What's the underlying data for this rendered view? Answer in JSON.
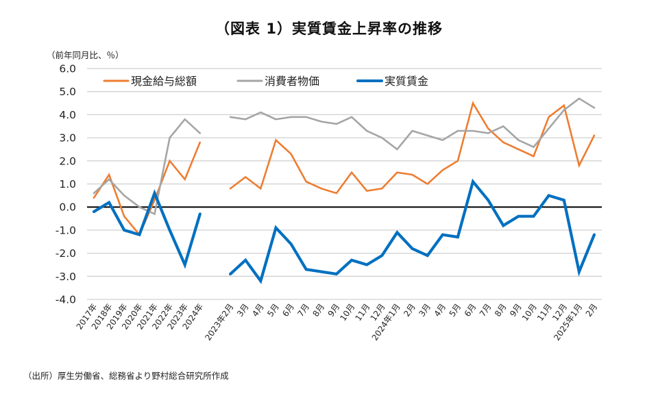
{
  "title": "（図表 1）実質賃金上昇率の推移",
  "unit_label": "（前年同月比、％）",
  "source": "（出所）厚生労働省、総務省より野村総合研究所作成",
  "chart_data": {
    "type": "line",
    "title": "（図表 1）実質賃金上昇率の推移",
    "ylabel": "（前年同月比、％）",
    "xlabel": "",
    "ylim": [
      -4.0,
      6.0
    ],
    "yticks": [
      "6.0",
      "5.0",
      "4.0",
      "3.0",
      "2.0",
      "1.0",
      "0.0",
      "-1.0",
      "-2.0",
      "-3.0",
      "-4.0"
    ],
    "ytick_values": [
      6,
      5,
      4,
      3,
      2,
      1,
      0,
      -1,
      -2,
      -3,
      -4
    ],
    "grid": true,
    "legend_position": "top",
    "categories": [
      "2017年",
      "2018年",
      "2019年",
      "2020年",
      "2021年",
      "2022年",
      "2023年",
      "2024年",
      "",
      "2023年2月",
      "3月",
      "4月",
      "5月",
      "6月",
      "7月",
      "8月",
      "9月",
      "10月",
      "11月",
      "12月",
      "2024年1月",
      "2月",
      "3月",
      "4月",
      "5月",
      "6月",
      "7月",
      "8月",
      "9月",
      "10月",
      "11月",
      "12月",
      "2025年1月",
      "2月"
    ],
    "series": [
      {
        "name": "現金給与総額",
        "color": "#ED7D31",
        "width": 2.6,
        "values": [
          0.4,
          1.4,
          -0.4,
          -1.2,
          0.3,
          2.0,
          1.2,
          2.8,
          null,
          0.8,
          1.3,
          0.8,
          2.9,
          2.3,
          1.1,
          0.8,
          0.6,
          1.5,
          0.7,
          0.8,
          1.5,
          1.4,
          1.0,
          1.6,
          2.0,
          4.5,
          3.4,
          2.8,
          2.5,
          2.2,
          3.9,
          4.4,
          1.8,
          3.1
        ]
      },
      {
        "name": "消費者物価",
        "color": "#A5A5A5",
        "width": 2.6,
        "values": [
          0.6,
          1.2,
          0.5,
          0.0,
          -0.3,
          3.0,
          3.8,
          3.2,
          null,
          3.9,
          3.8,
          4.1,
          3.8,
          3.9,
          3.9,
          3.7,
          3.6,
          3.9,
          3.3,
          3.0,
          2.5,
          3.3,
          3.1,
          2.9,
          3.3,
          3.3,
          3.2,
          3.5,
          2.9,
          2.6,
          3.4,
          4.2,
          4.7,
          4.3
        ]
      },
      {
        "name": "実質賃金",
        "color": "#0070C0",
        "width": 4.2,
        "values": [
          -0.2,
          0.2,
          -1.0,
          -1.2,
          0.6,
          -1.0,
          -2.5,
          -0.3,
          null,
          -2.9,
          -2.3,
          -3.2,
          -0.9,
          -1.6,
          -2.7,
          -2.8,
          -2.9,
          -2.3,
          -2.5,
          -2.1,
          -1.1,
          -1.8,
          -2.1,
          -1.2,
          -1.3,
          1.1,
          0.3,
          -0.8,
          -0.4,
          -0.4,
          0.5,
          0.3,
          -2.8,
          -1.2
        ]
      }
    ]
  }
}
